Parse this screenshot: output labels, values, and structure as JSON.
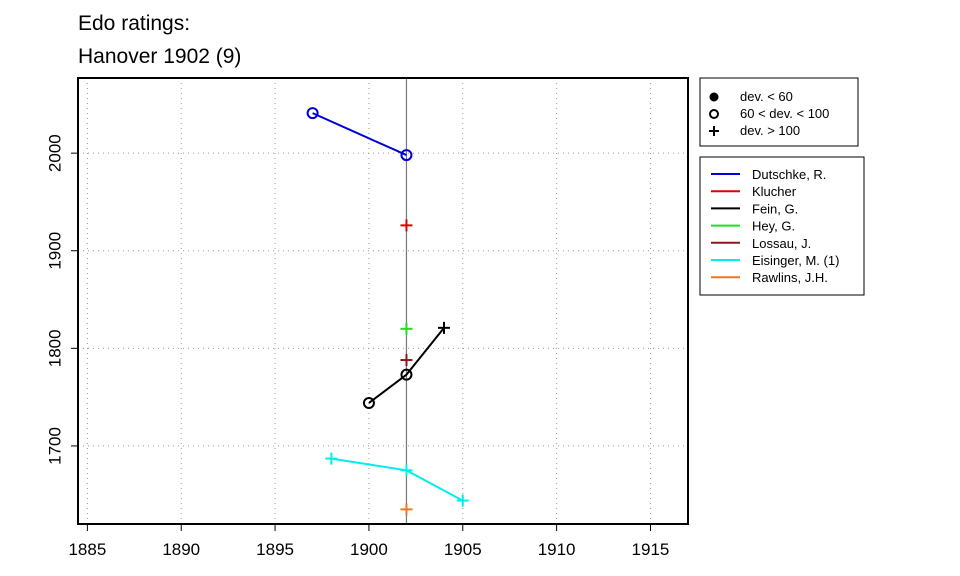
{
  "chart_data": {
    "type": "scatter",
    "title_line1": "Edo ratings:",
    "title_line2": "Hanover 1902 (9)",
    "xlabel": "",
    "ylabel": "",
    "xlim": [
      1884.5,
      1917
    ],
    "ylim": [
      1620,
      2077
    ],
    "x_ticks": [
      1885,
      1890,
      1895,
      1900,
      1905,
      1910,
      1915
    ],
    "y_ticks": [
      1700,
      1800,
      1900,
      2000
    ],
    "grid": true,
    "reference_line_x": 1902,
    "symbol_legend": [
      {
        "symbol": "filled-circle",
        "label": "dev. < 60"
      },
      {
        "symbol": "open-circle",
        "label": "60 < dev. < 100"
      },
      {
        "symbol": "plus",
        "label": "dev. > 100"
      }
    ],
    "series": [
      {
        "name": "Dutschke, R.",
        "color": "#0000dd",
        "points": [
          {
            "x": 1897,
            "y": 2041,
            "marker": "open-circle"
          },
          {
            "x": 1902,
            "y": 1998,
            "marker": "open-circle"
          }
        ]
      },
      {
        "name": "Klucher",
        "color": "#dd0000",
        "points": [
          {
            "x": 1902,
            "y": 1926,
            "marker": "plus"
          }
        ]
      },
      {
        "name": "Fein, G.",
        "color": "#000000",
        "points": [
          {
            "x": 1900,
            "y": 1744,
            "marker": "open-circle"
          },
          {
            "x": 1902,
            "y": 1773,
            "marker": "open-circle"
          },
          {
            "x": 1904,
            "y": 1821,
            "marker": "plus"
          }
        ]
      },
      {
        "name": "Hey, G.",
        "color": "#22dd22",
        "points": [
          {
            "x": 1902,
            "y": 1820,
            "marker": "plus"
          }
        ]
      },
      {
        "name": "Lossau, J.",
        "color": "#8b1a1a",
        "points": [
          {
            "x": 1902,
            "y": 1788,
            "marker": "plus"
          }
        ]
      },
      {
        "name": "Eisinger, M. (1)",
        "color": "#00eeee",
        "points": [
          {
            "x": 1898,
            "y": 1687,
            "marker": "plus"
          },
          {
            "x": 1902,
            "y": 1675,
            "marker": "plus"
          },
          {
            "x": 1905,
            "y": 1644,
            "marker": "plus"
          }
        ]
      },
      {
        "name": "Rawlins, J.H.",
        "color": "#ee7722",
        "points": [
          {
            "x": 1902,
            "y": 1635,
            "marker": "plus"
          }
        ]
      }
    ]
  }
}
